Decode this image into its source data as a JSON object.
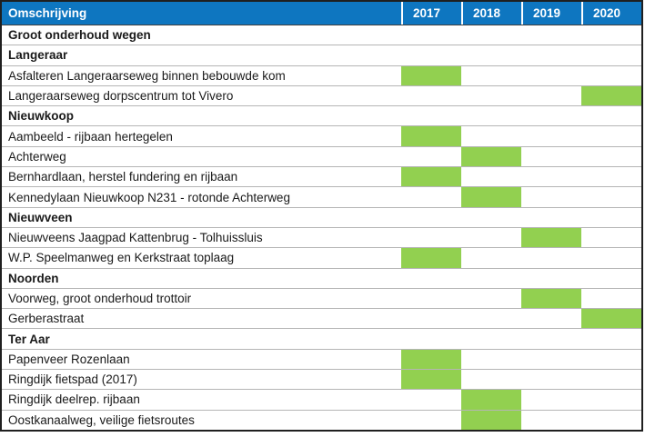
{
  "table": {
    "header": {
      "description_label": "Omschrijving",
      "years": [
        "2017",
        "2018",
        "2019",
        "2020"
      ]
    },
    "rows": [
      {
        "label": "Groot onderhoud wegen",
        "type": "section",
        "year": null
      },
      {
        "label": "Langeraar",
        "type": "section",
        "year": null
      },
      {
        "label": "Asfalteren Langeraarseweg binnen bebouwde kom",
        "type": "item",
        "year": "2017"
      },
      {
        "label": "Langeraarseweg dorpscentrum tot Vivero",
        "type": "item",
        "year": "2020"
      },
      {
        "label": "Nieuwkoop",
        "type": "section",
        "year": null
      },
      {
        "label": "Aambeeld - rijbaan hertegelen",
        "type": "item",
        "year": "2017"
      },
      {
        "label": "Achterweg",
        "type": "item",
        "year": "2018"
      },
      {
        "label": "Bernhardlaan, herstel fundering en rijbaan",
        "type": "item",
        "year": "2017"
      },
      {
        "label": "Kennedylaan Nieuwkoop N231 - rotonde Achterweg",
        "type": "item",
        "year": "2018"
      },
      {
        "label": "Nieuwveen",
        "type": "section",
        "year": null
      },
      {
        "label": "Nieuwveens Jaagpad Kattenbrug - Tolhuissluis",
        "type": "item",
        "year": "2019"
      },
      {
        "label": "W.P. Speelmanweg en Kerkstraat toplaag",
        "type": "item",
        "year": "2017"
      },
      {
        "label": "Noorden",
        "type": "section",
        "year": null
      },
      {
        "label": "Voorweg, groot onderhoud trottoir",
        "type": "item",
        "year": "2019"
      },
      {
        "label": "Gerberastraat",
        "type": "item",
        "year": "2020"
      },
      {
        "label": "Ter Aar",
        "type": "section",
        "year": null
      },
      {
        "label": "Papenveer Rozenlaan",
        "type": "item",
        "year": "2017"
      },
      {
        "label": "Ringdijk fietspad (2017)",
        "type": "item",
        "year": "2017"
      },
      {
        "label": "Ringdijk deelrep. rijbaan",
        "type": "item",
        "year": "2018"
      },
      {
        "label": "Oostkanaalweg, veilige fietsroutes",
        "type": "item",
        "year": "2018"
      }
    ],
    "colors": {
      "header_bg": "#0e76c0",
      "bar": "#92d050",
      "row_border": "#b5b5b5",
      "outer_border": "#1f1f1f",
      "header_text": "#ffffff",
      "body_text": "#1a1a1a"
    }
  },
  "chart_data": {
    "type": "table",
    "title": "Groot onderhoud wegen",
    "columns": [
      "Omschrijving",
      "2017",
      "2018",
      "2019",
      "2020"
    ],
    "legend_position": "none",
    "grid": "horizontal-row-borders",
    "bar_color": "#92d050",
    "sections": [
      {
        "name": "Langeraar",
        "items": [
          {
            "omschrijving": "Asfalteren Langeraarseweg binnen bebouwde kom",
            "planned_year": 2017
          },
          {
            "omschrijving": "Langeraarseweg dorpscentrum tot Vivero",
            "planned_year": 2020
          }
        ]
      },
      {
        "name": "Nieuwkoop",
        "items": [
          {
            "omschrijving": "Aambeeld - rijbaan hertegelen",
            "planned_year": 2017
          },
          {
            "omschrijving": "Achterweg",
            "planned_year": 2018
          },
          {
            "omschrijving": "Bernhardlaan, herstel fundering en rijbaan",
            "planned_year": 2017
          },
          {
            "omschrijving": "Kennedylaan Nieuwkoop N231 - rotonde Achterweg",
            "planned_year": 2018
          }
        ]
      },
      {
        "name": "Nieuwveen",
        "items": [
          {
            "omschrijving": "Nieuwveens Jaagpad Kattenbrug - Tolhuissluis",
            "planned_year": 2019
          },
          {
            "omschrijving": "W.P. Speelmanweg en Kerkstraat toplaag",
            "planned_year": 2017
          }
        ]
      },
      {
        "name": "Noorden",
        "items": [
          {
            "omschrijving": "Voorweg, groot onderhoud trottoir",
            "planned_year": 2019
          },
          {
            "omschrijving": "Gerberastraat",
            "planned_year": 2020
          }
        ]
      },
      {
        "name": "Ter Aar",
        "items": [
          {
            "omschrijving": "Papenveer Rozenlaan",
            "planned_year": 2017
          },
          {
            "omschrijving": "Ringdijk fietspad (2017)",
            "planned_year": 2017
          },
          {
            "omschrijving": "Ringdijk deelrep. rijbaan",
            "planned_year": 2018
          },
          {
            "omschrijving": "Oostkanaalweg, veilige fietsroutes",
            "planned_year": 2018
          }
        ]
      }
    ]
  }
}
